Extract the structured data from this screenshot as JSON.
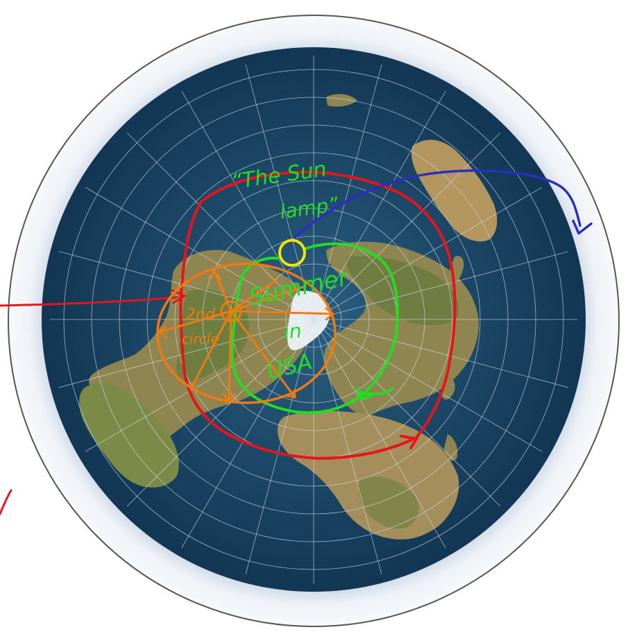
{
  "map": {
    "projection": "azimuthal-equidistant-north-polar",
    "colors": {
      "ocean": "#1d4d6c",
      "ocean_deep": "#143a55",
      "land": "#a88f5e",
      "land_green": "#5d7a3c",
      "ice": "#eef2f6",
      "ice_shade": "#b9c6dc",
      "grid": "#cfdbe6",
      "rim": "#555555"
    }
  },
  "annotations": {
    "colors": {
      "red": "#e8141a",
      "blue": "#2a2fbf",
      "green": "#22dd22",
      "yellow": "#f2e600",
      "orange": "#f07a12"
    },
    "sun_label_line1": "“The Sun",
    "sun_label_line2": "lamp”",
    "summer_label": "Summer",
    "summer_in": "in",
    "summer_usa": "USA",
    "orange_label_line1": "2nd",
    "orange_label_line2": "circle"
  }
}
